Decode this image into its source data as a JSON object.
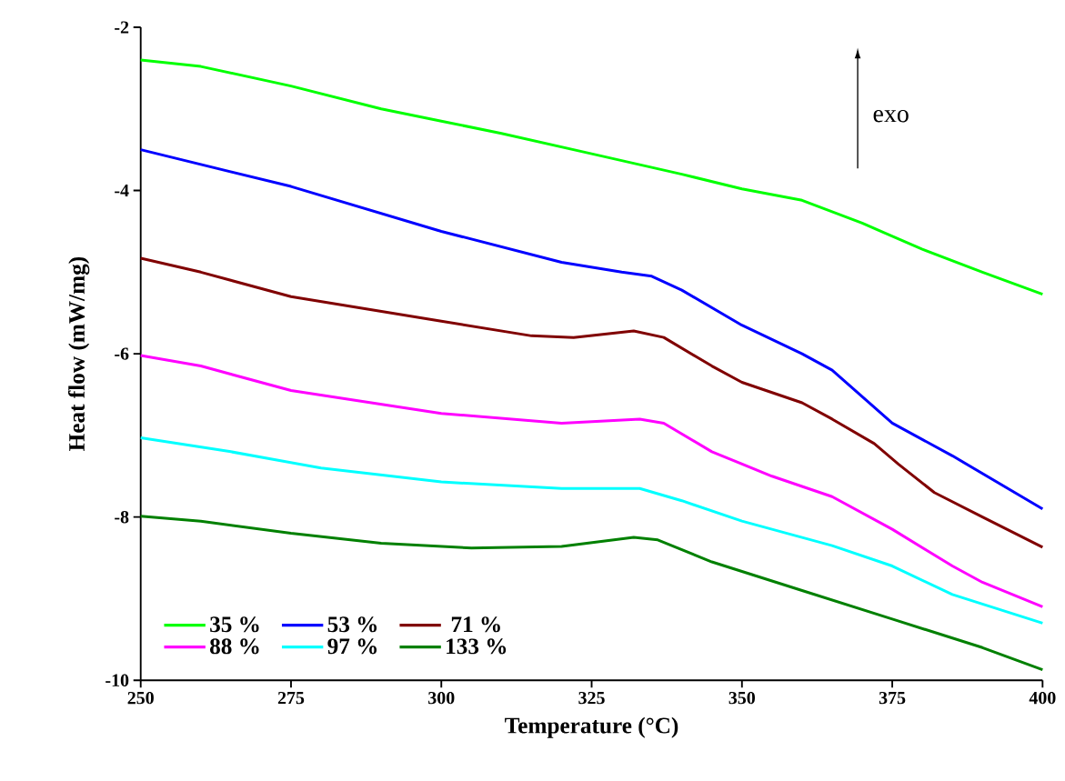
{
  "chart_data": {
    "type": "line",
    "xlabel": "Temperature (°C)",
    "ylabel": "Heat flow (mW/mg)",
    "xlim": [
      250,
      400
    ],
    "ylim": [
      -10,
      -2
    ],
    "xticks": [
      250,
      275,
      300,
      325,
      350,
      375,
      400
    ],
    "yticks": [
      -10,
      -8,
      -6,
      -4,
      -2
    ],
    "grid": false,
    "legend": "bottom left",
    "marker": "none",
    "line_style": "solid",
    "annotations": [
      "exo"
    ],
    "series": [
      {
        "name": "35 %",
        "color": "#00ff00",
        "x": [
          250,
          260,
          275,
          290,
          300,
          310,
          325,
          340,
          350,
          360,
          370,
          380,
          390,
          400
        ],
        "values": [
          -2.4,
          -2.48,
          -2.72,
          -3.0,
          -3.15,
          -3.3,
          -3.55,
          -3.8,
          -3.98,
          -4.12,
          -4.4,
          -4.72,
          -5.0,
          -5.27
        ]
      },
      {
        "name": "53 %",
        "color": "#0000ff",
        "x": [
          250,
          275,
          300,
          320,
          330,
          335,
          340,
          350,
          360,
          365,
          375,
          385,
          400
        ],
        "values": [
          -3.5,
          -3.95,
          -4.5,
          -4.88,
          -5.0,
          -5.05,
          -5.22,
          -5.65,
          -6.0,
          -6.2,
          -6.85,
          -7.25,
          -7.9
        ]
      },
      {
        "name": "71 %",
        "color": "#800000",
        "x": [
          250,
          260,
          275,
          300,
          315,
          322,
          332,
          337,
          345,
          350,
          360,
          365,
          372,
          376,
          382,
          390,
          400
        ],
        "values": [
          -4.83,
          -5.0,
          -5.3,
          -5.6,
          -5.78,
          -5.8,
          -5.72,
          -5.8,
          -6.15,
          -6.35,
          -6.6,
          -6.8,
          -7.1,
          -7.35,
          -7.7,
          -8.0,
          -8.37
        ]
      },
      {
        "name": "88 %",
        "color": "#ff00ff",
        "x": [
          250,
          260,
          275,
          300,
          320,
          333,
          337,
          345,
          355,
          365,
          375,
          385,
          390,
          400
        ],
        "values": [
          -6.02,
          -6.15,
          -6.45,
          -6.73,
          -6.85,
          -6.8,
          -6.85,
          -7.2,
          -7.5,
          -7.75,
          -8.15,
          -8.6,
          -8.8,
          -9.1
        ]
      },
      {
        "name": "97 %",
        "color": "#00ffff",
        "x": [
          250,
          265,
          280,
          300,
          320,
          333,
          340,
          350,
          365,
          375,
          385,
          400
        ],
        "values": [
          -7.03,
          -7.2,
          -7.4,
          -7.57,
          -7.65,
          -7.65,
          -7.8,
          -8.05,
          -8.35,
          -8.6,
          -8.95,
          -9.3
        ]
      },
      {
        "name": "133 %",
        "color": "#008000",
        "x": [
          250,
          260,
          275,
          290,
          305,
          320,
          332,
          336,
          345,
          360,
          375,
          390,
          400
        ],
        "values": [
          -7.99,
          -8.05,
          -8.2,
          -8.32,
          -8.38,
          -8.36,
          -8.25,
          -8.28,
          -8.55,
          -8.9,
          -9.25,
          -9.6,
          -9.87
        ]
      }
    ]
  }
}
